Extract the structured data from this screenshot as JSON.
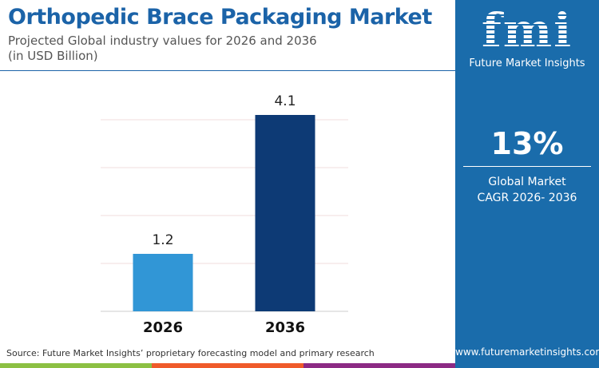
{
  "title": "Orthopedic Brace Packaging Market",
  "subtitle": [
    "Projected Global industry values for 2026 and 2036",
    "(in USD Billion)"
  ],
  "brand": {
    "logo_text": "fmi",
    "name": "Future Market Insights",
    "url": "www.futuremarketinsights.com"
  },
  "cagr": {
    "value": "13%",
    "label1": "Global Market",
    "label2": "CAGR 2026- 2036"
  },
  "source": "Source: Future Market Insights’ proprietary forecasting model and primary research",
  "colors": {
    "accent": "#1a6cab",
    "bar_2026": "#3196d6",
    "bar_2036": "#0d3a75",
    "strip": [
      "#8cc043",
      "#ef5a2a",
      "#8c2a84"
    ]
  },
  "chart_data": {
    "type": "bar",
    "categories": [
      "2026",
      "2036"
    ],
    "values": [
      1.2,
      4.1
    ],
    "ylim": [
      0,
      4
    ],
    "grid": true,
    "xlabel": "",
    "ylabel": ""
  }
}
